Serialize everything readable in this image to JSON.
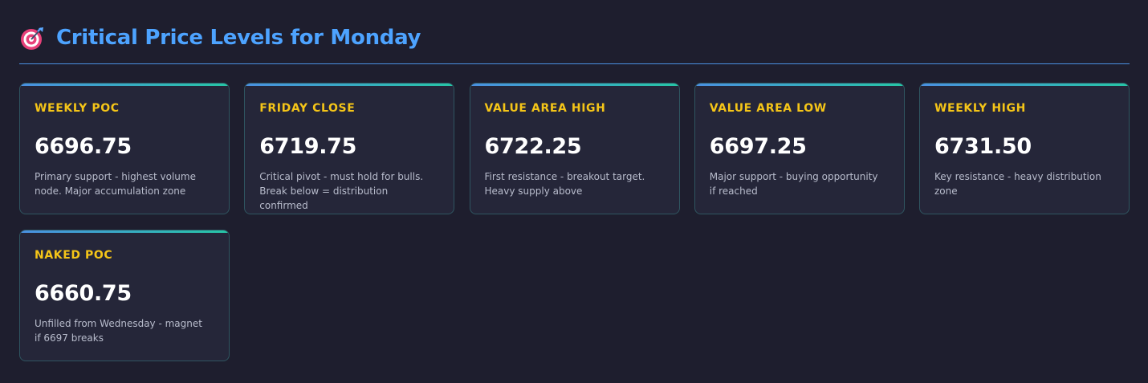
{
  "header": {
    "icon": "target-dart-icon",
    "title": "Critical Price Levels for Monday"
  },
  "colors": {
    "background": "#1e1e2e",
    "title": "#4da3ff",
    "label": "#f5c518",
    "value": "#ffffff",
    "card_accent_start": "#4a90e2",
    "card_accent_end": "#26c6a6"
  },
  "cards": [
    {
      "label": "WEEKLY POC",
      "value": "6696.75",
      "description": "Primary support - highest volume node. Major accumulation zone"
    },
    {
      "label": "FRIDAY CLOSE",
      "value": "6719.75",
      "description": "Critical pivot - must hold for bulls. Break below = distribution confirmed"
    },
    {
      "label": "VALUE AREA HIGH",
      "value": "6722.25",
      "description": "First resistance - breakout target. Heavy supply above"
    },
    {
      "label": "VALUE AREA LOW",
      "value": "6697.25",
      "description": "Major support - buying opportunity if reached"
    },
    {
      "label": "WEEKLY HIGH",
      "value": "6731.50",
      "description": "Key resistance - heavy distribution zone"
    },
    {
      "label": "NAKED POC",
      "value": "6660.75",
      "description": "Unfilled from Wednesday - magnet if 6697 breaks"
    }
  ]
}
